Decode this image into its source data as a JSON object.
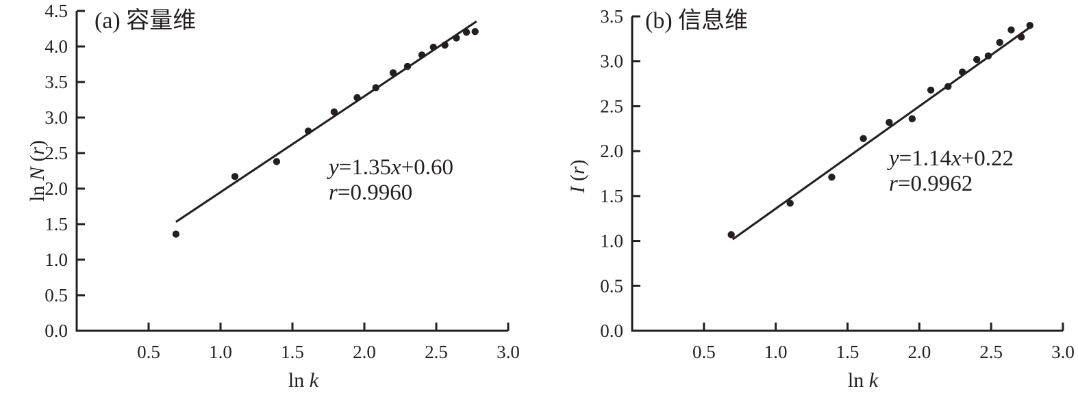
{
  "figure": {
    "background": "#ffffff",
    "ink": "#231f20"
  },
  "chart_data": [
    {
      "type": "scatter",
      "panel_label": "(a) 容量维",
      "xlabel": "ln k",
      "ylabel": "ln N (r)",
      "xlabel_segments": [
        {
          "text": "ln ",
          "italic": false
        },
        {
          "text": "k",
          "italic": true
        }
      ],
      "ylabel_segments": [
        {
          "text": "ln ",
          "italic": false
        },
        {
          "text": "N",
          "italic": true
        },
        {
          "text": " (",
          "italic": false
        },
        {
          "text": "r",
          "italic": true
        },
        {
          "text": ")",
          "italic": false
        }
      ],
      "xlim": [
        0,
        3.0
      ],
      "ylim": [
        0,
        4.5
      ],
      "x_ticks": [
        0.5,
        1.0,
        1.5,
        2.0,
        2.5,
        3.0
      ],
      "y_ticks": [
        0.0,
        0.5,
        1.0,
        1.5,
        2.0,
        2.5,
        3.0,
        3.5,
        4.0,
        4.5
      ],
      "x": [
        0.69,
        1.1,
        1.39,
        1.61,
        1.79,
        1.95,
        2.08,
        2.2,
        2.3,
        2.4,
        2.48,
        2.56,
        2.64,
        2.71,
        2.77
      ],
      "y": [
        1.36,
        2.17,
        2.38,
        2.81,
        3.08,
        3.28,
        3.42,
        3.63,
        3.72,
        3.88,
        3.99,
        4.02,
        4.12,
        4.2,
        4.21
      ],
      "fit_line": {
        "slope": 1.35,
        "intercept": 0.6,
        "x_start": 0.69,
        "x_end": 2.78
      },
      "annotation": {
        "equation": "y=1.35x+0.60",
        "r_value": "r=0.9960",
        "equation_segments": [
          {
            "text": "y",
            "italic": true
          },
          {
            "text": "=1.35",
            "italic": false
          },
          {
            "text": "x",
            "italic": true
          },
          {
            "text": "+0.60",
            "italic": false
          }
        ],
        "r_segments": [
          {
            "text": "r",
            "italic": true
          },
          {
            "text": "=0.9960",
            "italic": false
          }
        ]
      },
      "grid": false,
      "legend": null
    },
    {
      "type": "scatter",
      "panel_label": "(b) 信息维",
      "xlabel": "ln k",
      "ylabel": "I (r)",
      "xlabel_segments": [
        {
          "text": "ln ",
          "italic": false
        },
        {
          "text": "k",
          "italic": true
        }
      ],
      "ylabel_segments": [
        {
          "text": "I",
          "italic": true
        },
        {
          "text": " (",
          "italic": false
        },
        {
          "text": "r",
          "italic": true
        },
        {
          "text": ")",
          "italic": false
        }
      ],
      "xlim": [
        0,
        3.0
      ],
      "ylim": [
        0,
        3.5
      ],
      "x_ticks": [
        0.5,
        1.0,
        1.5,
        2.0,
        2.5,
        3.0
      ],
      "y_ticks": [
        0.0,
        0.5,
        1.0,
        1.5,
        2.0,
        2.5,
        3.0,
        3.5
      ],
      "x": [
        0.69,
        1.1,
        1.39,
        1.61,
        1.79,
        1.95,
        2.08,
        2.2,
        2.3,
        2.4,
        2.48,
        2.56,
        2.64,
        2.71,
        2.77
      ],
      "y": [
        1.07,
        1.42,
        1.71,
        2.14,
        2.32,
        2.36,
        2.68,
        2.72,
        2.88,
        3.02,
        3.06,
        3.21,
        3.35,
        3.27,
        3.4
      ],
      "fit_line": {
        "slope": 1.14,
        "intercept": 0.22,
        "x_start": 0.7,
        "x_end": 2.79
      },
      "annotation": {
        "equation": "y=1.14x+0.22",
        "r_value": "r=0.9962",
        "equation_segments": [
          {
            "text": "y",
            "italic": true
          },
          {
            "text": "=1.14",
            "italic": false
          },
          {
            "text": "x",
            "italic": true
          },
          {
            "text": "+0.22",
            "italic": false
          }
        ],
        "r_segments": [
          {
            "text": "r",
            "italic": true
          },
          {
            "text": "=0.9962",
            "italic": false
          }
        ]
      },
      "grid": false,
      "legend": null
    }
  ]
}
